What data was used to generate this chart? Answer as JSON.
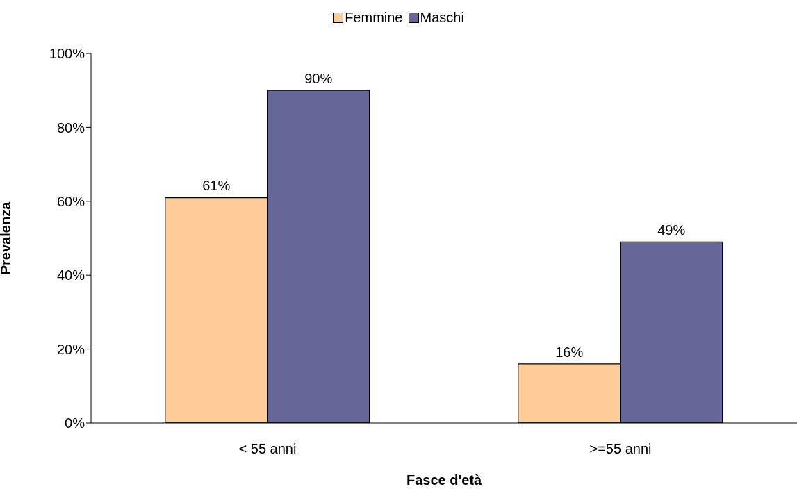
{
  "chart_data": {
    "type": "bar",
    "xlabel": "Fasce d'età",
    "ylabel": "Prevalenza",
    "categories": [
      "< 55 anni",
      ">=55 anni"
    ],
    "series": [
      {
        "name": "Femmine",
        "color": "#ffcc99",
        "values": [
          61,
          16
        ],
        "value_labels": [
          "61%",
          "16%"
        ]
      },
      {
        "name": "Maschi",
        "color": "#666699",
        "values": [
          90,
          49
        ],
        "value_labels": [
          "90%",
          "49%"
        ]
      }
    ],
    "ylim": [
      0,
      100
    ],
    "yticks": [
      {
        "value": 0,
        "label": "0%"
      },
      {
        "value": 20,
        "label": "20%"
      },
      {
        "value": 40,
        "label": "40%"
      },
      {
        "value": 60,
        "label": "60%"
      },
      {
        "value": 80,
        "label": "80%"
      },
      {
        "value": 100,
        "label": "100%"
      }
    ],
    "legend": "top",
    "grid": false
  }
}
